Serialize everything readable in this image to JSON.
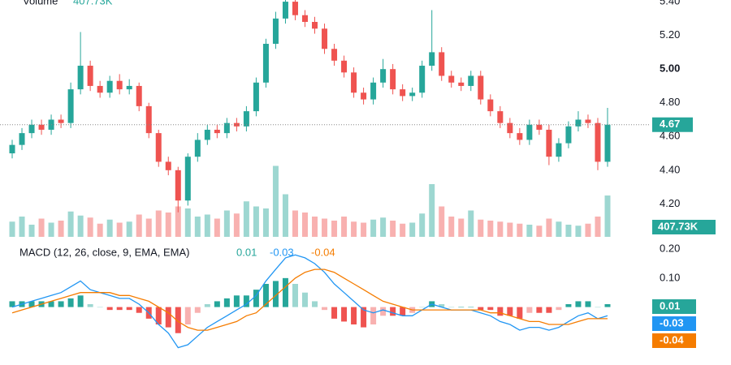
{
  "chart_data": [
    {
      "type": "candlestick",
      "open": [
        4.5,
        4.55,
        4.62,
        4.67,
        4.64,
        4.7,
        4.68,
        4.88,
        5.02,
        4.9,
        4.86,
        4.93,
        4.88,
        4.9,
        4.78,
        4.62,
        4.45,
        4.4,
        4.22,
        4.48,
        4.58,
        4.64,
        4.62,
        4.68,
        4.66,
        4.75,
        4.92,
        5.15,
        5.3,
        5.4,
        5.32,
        5.28,
        5.24,
        5.12,
        5.05,
        4.98,
        4.86,
        4.82,
        4.92,
        5.0,
        4.88,
        4.84,
        4.86,
        5.02,
        5.1,
        4.96,
        4.92,
        4.9,
        4.96,
        4.82,
        4.75,
        4.68,
        4.62,
        4.58,
        4.67,
        4.64,
        4.48,
        4.56,
        4.66,
        4.7,
        4.68,
        4.45
      ],
      "high": [
        4.58,
        4.65,
        4.7,
        4.7,
        4.73,
        4.73,
        4.92,
        5.22,
        5.05,
        4.93,
        4.96,
        4.97,
        4.94,
        4.92,
        4.8,
        4.64,
        4.48,
        4.42,
        4.5,
        4.62,
        4.67,
        4.67,
        4.71,
        4.71,
        4.78,
        4.95,
        5.18,
        5.34,
        5.44,
        5.42,
        5.35,
        5.31,
        5.27,
        5.15,
        5.08,
        5.01,
        4.89,
        4.95,
        5.06,
        5.03,
        4.91,
        4.89,
        5.05,
        5.35,
        5.13,
        4.99,
        4.95,
        4.99,
        4.99,
        4.85,
        4.78,
        4.71,
        4.65,
        4.7,
        4.7,
        4.67,
        4.59,
        4.69,
        4.75,
        4.73,
        4.71,
        4.77
      ],
      "low": [
        4.47,
        4.52,
        4.59,
        4.61,
        4.61,
        4.65,
        4.65,
        4.85,
        4.87,
        4.83,
        4.83,
        4.85,
        4.85,
        4.75,
        4.59,
        4.42,
        4.37,
        4.15,
        4.19,
        4.45,
        4.55,
        4.59,
        4.59,
        4.63,
        4.63,
        4.72,
        4.89,
        5.12,
        5.27,
        5.29,
        5.25,
        5.21,
        5.09,
        5.02,
        4.95,
        4.83,
        4.79,
        4.79,
        4.89,
        4.85,
        4.81,
        4.81,
        4.83,
        4.99,
        4.93,
        4.89,
        4.87,
        4.87,
        4.79,
        4.72,
        4.65,
        4.59,
        4.55,
        4.55,
        4.61,
        4.43,
        4.45,
        4.53,
        4.63,
        4.65,
        4.4,
        4.42
      ],
      "close": [
        4.55,
        4.62,
        4.67,
        4.64,
        4.7,
        4.68,
        4.88,
        5.02,
        4.9,
        4.86,
        4.93,
        4.88,
        4.9,
        4.78,
        4.62,
        4.45,
        4.4,
        4.22,
        4.48,
        4.58,
        4.64,
        4.62,
        4.68,
        4.66,
        4.75,
        4.92,
        5.15,
        5.3,
        5.4,
        5.32,
        5.28,
        5.24,
        5.12,
        5.05,
        4.98,
        4.86,
        4.82,
        4.92,
        5.0,
        4.88,
        4.84,
        4.86,
        5.02,
        5.1,
        4.96,
        4.92,
        4.9,
        4.96,
        4.82,
        4.75,
        4.68,
        4.62,
        4.58,
        4.67,
        4.64,
        4.48,
        4.56,
        4.66,
        4.7,
        4.68,
        4.45,
        4.67
      ],
      "up_color": "#26a69a",
      "down_color": "#ef5350",
      "ylim": [
        3.99,
        5.41
      ],
      "yticks": [
        {
          "value": 5.4,
          "label": "5.40"
        },
        {
          "value": 5.2,
          "label": "5.20"
        },
        {
          "value": 5.0,
          "label": "5.00"
        },
        {
          "value": 4.8,
          "label": "4.80"
        },
        {
          "value": 4.6,
          "label": "4.60"
        },
        {
          "value": 4.4,
          "label": "4.40"
        },
        {
          "value": 4.2,
          "label": "4.20"
        }
      ],
      "volume": {
        "title": "Volume",
        "last_label": "407.73K",
        "ylim": [
          0,
          800000
        ],
        "values": [
          150000,
          200000,
          120000,
          180000,
          140000,
          160000,
          250000,
          210000,
          190000,
          130000,
          170000,
          140000,
          150000,
          220000,
          180000,
          260000,
          240000,
          300000,
          280000,
          200000,
          220000,
          180000,
          260000,
          230000,
          350000,
          300000,
          280000,
          700000,
          420000,
          260000,
          240000,
          200000,
          180000,
          160000,
          200000,
          150000,
          140000,
          170000,
          190000,
          160000,
          130000,
          140000,
          230000,
          520000,
          300000,
          200000,
          180000,
          260000,
          170000,
          160000,
          150000,
          140000,
          130000,
          120000,
          110000,
          180000,
          150000,
          120000,
          110000,
          130000,
          200000,
          407730
        ]
      }
    },
    {
      "type": "macd",
      "title": "MACD (12, 26, close, 9, EMA, EMA)",
      "ylim": [
        -0.2,
        0.22
      ],
      "yticks": [
        {
          "value": 0.2,
          "label": "0.20"
        },
        {
          "value": 0.1,
          "label": "0.10"
        }
      ],
      "histogram": {
        "color": "#26a69a",
        "negative_color": "#ef5350",
        "values": [
          0.02,
          0.02,
          0.02,
          0.02,
          0.02,
          0.02,
          0.03,
          0.04,
          0.01,
          0.0,
          -0.01,
          -0.01,
          -0.01,
          -0.02,
          -0.04,
          -0.06,
          -0.07,
          -0.09,
          -0.06,
          -0.02,
          0.01,
          0.02,
          0.03,
          0.04,
          0.04,
          0.06,
          0.08,
          0.09,
          0.1,
          0.08,
          0.05,
          0.02,
          -0.01,
          -0.04,
          -0.05,
          -0.06,
          -0.07,
          -0.06,
          -0.03,
          -0.03,
          -0.03,
          -0.02,
          0.0,
          0.02,
          0.01,
          0.0,
          0.0,
          0.0,
          -0.01,
          -0.01,
          -0.03,
          -0.03,
          -0.04,
          -0.02,
          -0.02,
          -0.02,
          -0.01,
          0.01,
          0.02,
          0.02,
          0.0,
          0.01
        ]
      },
      "macd": {
        "color": "#2196f3",
        "values": [
          0.0,
          0.01,
          0.02,
          0.03,
          0.04,
          0.05,
          0.07,
          0.09,
          0.06,
          0.05,
          0.04,
          0.03,
          0.03,
          0.01,
          -0.02,
          -0.06,
          -0.09,
          -0.14,
          -0.13,
          -0.1,
          -0.07,
          -0.05,
          -0.03,
          -0.01,
          0.01,
          0.04,
          0.09,
          0.13,
          0.17,
          0.18,
          0.17,
          0.15,
          0.12,
          0.08,
          0.05,
          0.02,
          -0.01,
          -0.02,
          -0.01,
          -0.02,
          -0.03,
          -0.03,
          -0.01,
          0.01,
          0.0,
          -0.01,
          -0.01,
          -0.01,
          -0.02,
          -0.03,
          -0.05,
          -0.06,
          -0.08,
          -0.07,
          -0.07,
          -0.08,
          -0.07,
          -0.05,
          -0.03,
          -0.02,
          -0.04,
          -0.03
        ]
      },
      "signal": {
        "color": "#f57c00",
        "values": [
          -0.02,
          -0.01,
          0.0,
          0.01,
          0.02,
          0.03,
          0.04,
          0.05,
          0.05,
          0.05,
          0.05,
          0.04,
          0.04,
          0.03,
          0.02,
          0.0,
          -0.02,
          -0.05,
          -0.07,
          -0.08,
          -0.08,
          -0.07,
          -0.06,
          -0.05,
          -0.03,
          -0.02,
          0.01,
          0.04,
          0.07,
          0.1,
          0.12,
          0.13,
          0.13,
          0.12,
          0.1,
          0.08,
          0.06,
          0.04,
          0.02,
          0.01,
          0.0,
          -0.01,
          -0.01,
          -0.01,
          -0.01,
          -0.01,
          -0.01,
          -0.01,
          -0.01,
          -0.02,
          -0.02,
          -0.03,
          -0.04,
          -0.05,
          -0.05,
          -0.06,
          -0.06,
          -0.06,
          -0.05,
          -0.04,
          -0.04,
          -0.04
        ]
      }
    }
  ]
}
